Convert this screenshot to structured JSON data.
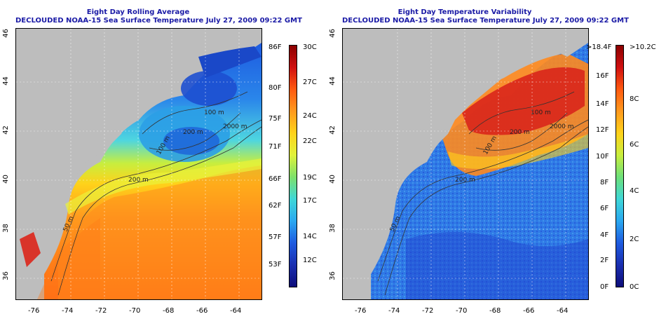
{
  "left_panel": {
    "title_line1": "Eight Day Rolling Average",
    "title_line2": "DECLOUDED NOAA-15 Sea Surface Temperature July 27, 2009 09:22 GMT",
    "colorbar_f": [
      "86F",
      "80F",
      "75F",
      "71F",
      "66F",
      "62F",
      "57F",
      "53F"
    ],
    "colorbar_c": [
      "30C",
      "27C",
      "24C",
      "22C",
      "19C",
      "17C",
      "14C",
      "12C"
    ],
    "contour_labels": [
      "100 m",
      "200 m",
      "2000 m",
      "200 m",
      "50 m",
      "100 m",
      "200 m"
    ]
  },
  "right_panel": {
    "title_line1": "Eight Day Temperature Variability",
    "title_line2": "DECLOUDED NOAA-15 Sea Surface Temperature July 27, 2009 09:22 GMT",
    "colorbar_f": [
      ">18.4F",
      "16F",
      "14F",
      "12F",
      "10F",
      "8F",
      "6F",
      "4F",
      "2F",
      "0F"
    ],
    "colorbar_c": [
      ">10.2C",
      "8C",
      "6C",
      "4C",
      "2C",
      "0C"
    ],
    "contour_labels": [
      "100 m",
      "200 m",
      "2000 m",
      "200 m",
      "50 m",
      "100 m",
      "200 m"
    ]
  },
  "axes": {
    "x_ticks": [
      "-76",
      "-74",
      "-72",
      "-70",
      "-68",
      "-66",
      "-64"
    ],
    "y_ticks": [
      "46",
      "44",
      "42",
      "40",
      "38",
      "36"
    ]
  },
  "colors": {
    "title": "#1a1aa6",
    "land": "#bdbdbd"
  }
}
